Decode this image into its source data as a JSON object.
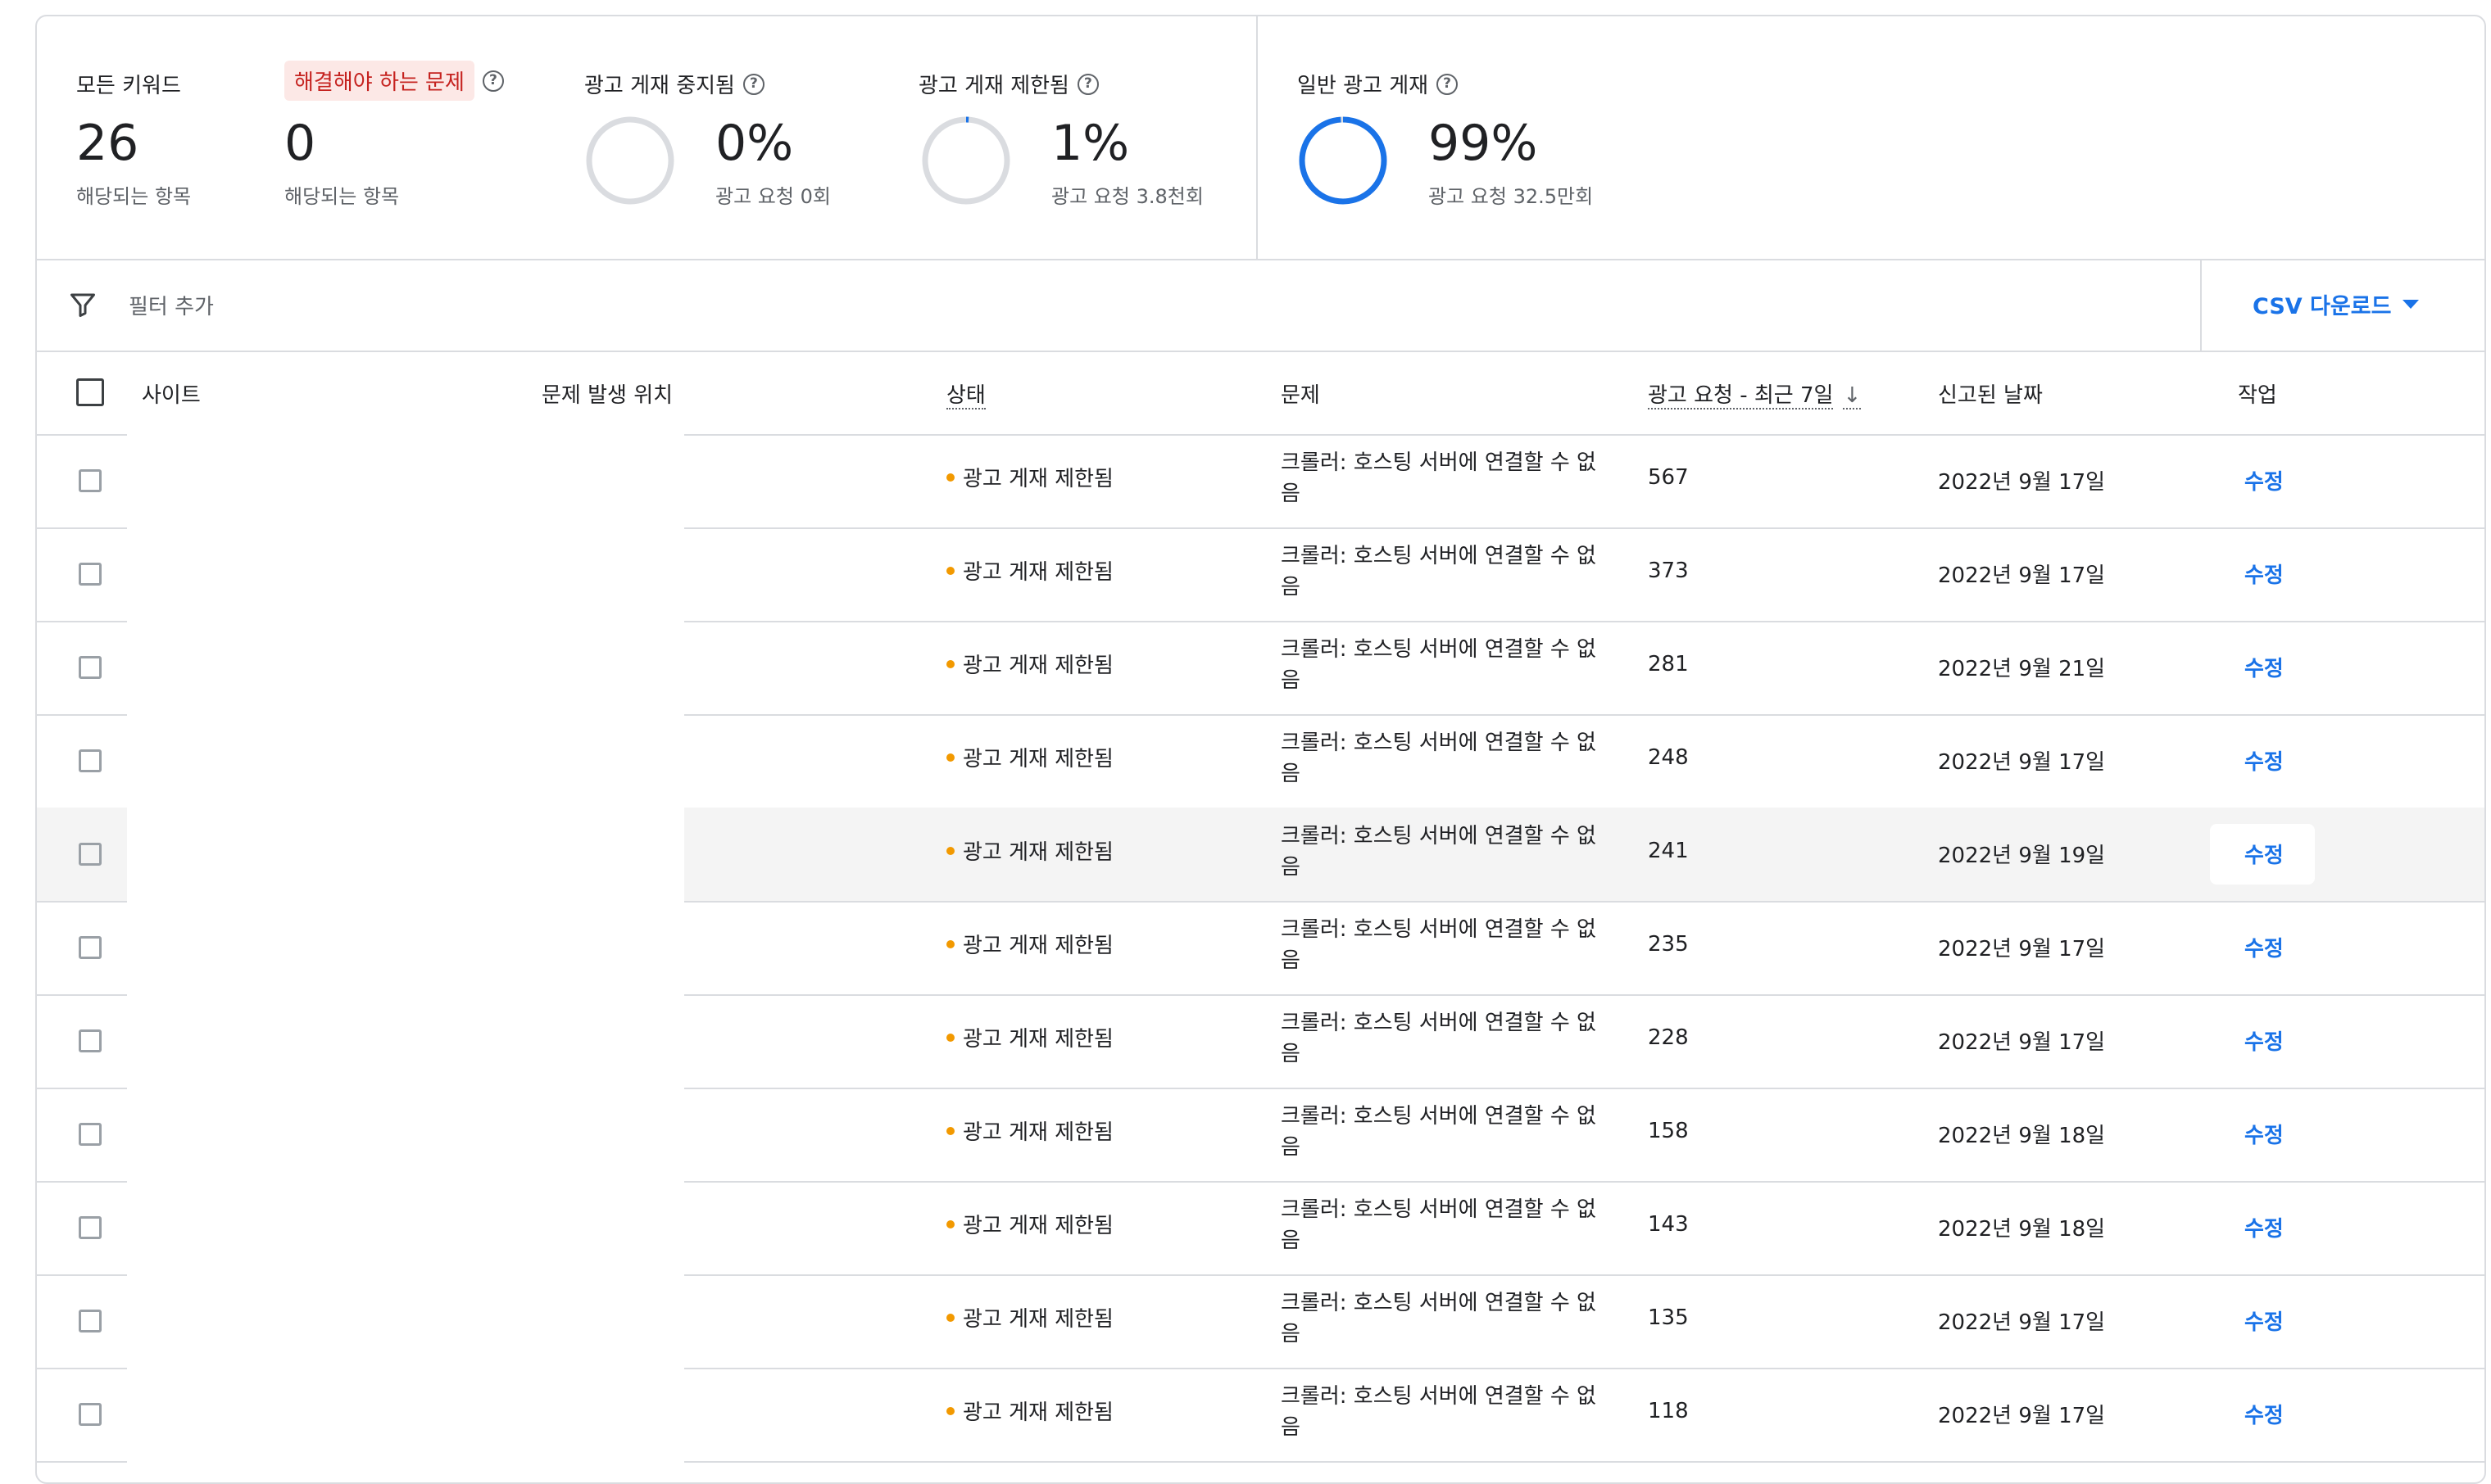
{
  "summary": {
    "all_keywords": {
      "title": "모든 키워드",
      "value": "26",
      "sub": "해당되는 항목"
    },
    "issues": {
      "title": "해결해야 하는 문제",
      "value": "0",
      "sub": "해당되는 항목"
    },
    "paused": {
      "title": "광고 게재 중지됨",
      "value": "0%",
      "sub": "광고 요청 0회",
      "fraction": 0
    },
    "limited": {
      "title": "광고 게재 제한됨",
      "value": "1%",
      "sub": "광고 요청 3.8천회",
      "fraction": 0.01
    },
    "normal": {
      "title": "일반 광고 게재",
      "value": "99%",
      "sub": "광고 요청 32.5만회",
      "fraction": 0.99
    }
  },
  "colors": {
    "accent": "#1a73e8",
    "warning_dot": "#f29900",
    "chip_bg": "#fce8e6",
    "chip_text": "#c5221f",
    "ring_empty": "#dadce0"
  },
  "filter": {
    "label": "필터 추가",
    "icon": "filter-icon"
  },
  "csv": {
    "label": "CSV 다운로드"
  },
  "table": {
    "headers": {
      "site": "사이트",
      "location": "문제 발생 위치",
      "status": "상태",
      "issue": "문제",
      "requests": "광고 요청 - 최근 7일",
      "date": "신고된 날짜",
      "action": "작업"
    },
    "rows": [
      {
        "status": "광고 게재 제한됨",
        "issue": "크롤러: 호스팅 서버에 연결할 수 없음",
        "requests": "567",
        "date": "2022년 9월 17일",
        "action": "수정"
      },
      {
        "status": "광고 게재 제한됨",
        "issue": "크롤러: 호스팅 서버에 연결할 수 없음",
        "requests": "373",
        "date": "2022년 9월 17일",
        "action": "수정"
      },
      {
        "status": "광고 게재 제한됨",
        "issue": "크롤러: 호스팅 서버에 연결할 수 없음",
        "requests": "281",
        "date": "2022년 9월 21일",
        "action": "수정"
      },
      {
        "status": "광고 게재 제한됨",
        "issue": "크롤러: 호스팅 서버에 연결할 수 없음",
        "requests": "248",
        "date": "2022년 9월 17일",
        "action": "수정"
      },
      {
        "status": "광고 게재 제한됨",
        "issue": "크롤러: 호스팅 서버에 연결할 수 없음",
        "requests": "241",
        "date": "2022년 9월 19일",
        "action": "수정"
      },
      {
        "status": "광고 게재 제한됨",
        "issue": "크롤러: 호스팅 서버에 연결할 수 없음",
        "requests": "235",
        "date": "2022년 9월 17일",
        "action": "수정"
      },
      {
        "status": "광고 게재 제한됨",
        "issue": "크롤러: 호스팅 서버에 연결할 수 없음",
        "requests": "228",
        "date": "2022년 9월 17일",
        "action": "수정"
      },
      {
        "status": "광고 게재 제한됨",
        "issue": "크롤러: 호스팅 서버에 연결할 수 없음",
        "requests": "158",
        "date": "2022년 9월 18일",
        "action": "수정"
      },
      {
        "status": "광고 게재 제한됨",
        "issue": "크롤러: 호스팅 서버에 연결할 수 없음",
        "requests": "143",
        "date": "2022년 9월 18일",
        "action": "수정"
      },
      {
        "status": "광고 게재 제한됨",
        "issue": "크롤러: 호스팅 서버에 연결할 수 없음",
        "requests": "135",
        "date": "2022년 9월 17일",
        "action": "수정"
      },
      {
        "status": "광고 게재 제한됨",
        "issue": "크롤러: 호스팅 서버에 연결할 수 없음",
        "requests": "118",
        "date": "2022년 9월 17일",
        "action": "수정"
      }
    ]
  }
}
